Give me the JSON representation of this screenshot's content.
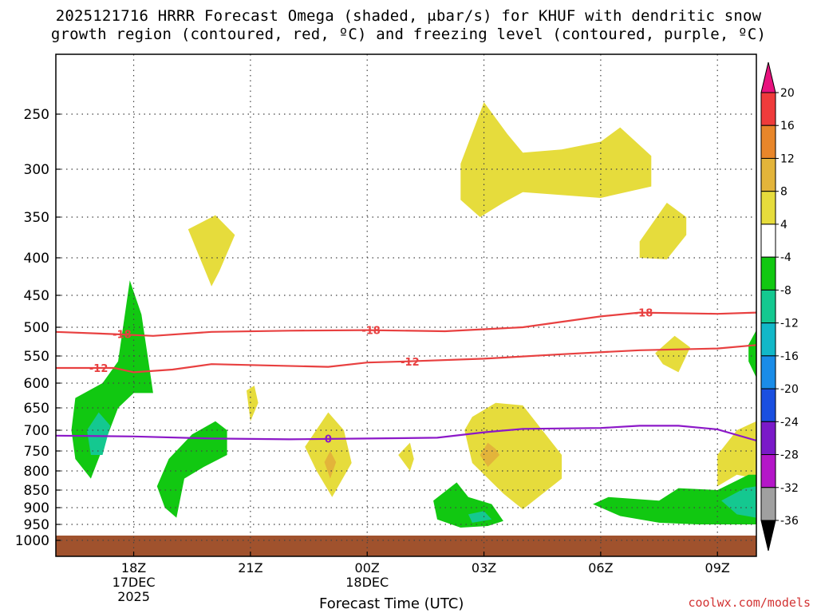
{
  "title": {
    "line1": "2025121716 HRRR Forecast Omega (shaded, μbar/s) for KHUF with dendritic snow",
    "line2": "growth region (contoured, red, ºC) and freezing level (contoured, purple, ºC)"
  },
  "xlabel": "Forecast Time (UTC)",
  "credit": "coolwx.com/models",
  "chart_data": {
    "type": "time-height cross section",
    "title": "2025121716 HRRR Forecast Omega (shaded, μbar/s) for KHUF with dendritic snow growth region (contoured, red, ºC) and freezing level (contoured, purple, ºC)",
    "xlabel": "Forecast Time (UTC)",
    "ylabel": "",
    "y_axis_scale": "pressure (log-like), hPa, increasing downward",
    "y_ticks": [
      250,
      300,
      350,
      400,
      450,
      500,
      550,
      600,
      650,
      700,
      750,
      800,
      850,
      900,
      950,
      1000
    ],
    "x_ticks": [
      {
        "hour": 18,
        "lines": [
          "18Z",
          "17DEC",
          "2025"
        ]
      },
      {
        "hour": 21,
        "lines": [
          "21Z"
        ]
      },
      {
        "hour": 24,
        "lines": [
          "00Z",
          "18DEC"
        ]
      },
      {
        "hour": 27,
        "lines": [
          "03Z"
        ]
      },
      {
        "hour": 30,
        "lines": [
          "06Z"
        ]
      },
      {
        "hour": 33,
        "lines": [
          "09Z"
        ]
      }
    ],
    "xlim_hours": [
      16,
      34
    ],
    "grid": true,
    "colorbar": {
      "labels": [
        "20",
        "16",
        "12",
        "8",
        "4",
        "-4",
        "-8",
        "-12",
        "-16",
        "-20",
        "-24",
        "-28",
        "-32",
        "-36"
      ],
      "colors": [
        "#e8127e",
        "#ef3b3b",
        "#e8862a",
        "#e3b43a",
        "#e6dc3c",
        "#ffffff",
        "#11c811",
        "#14c890",
        "#12b8c8",
        "#1a8ce8",
        "#1a4fe0",
        "#7a19c8",
        "#b416c8",
        "#a0a0a0",
        "#000000"
      ]
    },
    "contours": [
      {
        "name": "dendritic snow growth",
        "color": "#e84040",
        "labels": [
          "-18",
          "-12"
        ],
        "lines": [
          {
            "label": "-18",
            "points": [
              [
                16,
                508
              ],
              [
                17.5,
                512
              ],
              [
                18.5,
                515
              ],
              [
                20,
                508
              ],
              [
                22,
                506
              ],
              [
                24,
                505
              ],
              [
                26,
                507
              ],
              [
                28,
                500
              ],
              [
                30,
                483
              ],
              [
                31,
                477
              ],
              [
                33,
                479
              ],
              [
                34,
                477
              ]
            ]
          },
          {
            "label": "-12",
            "points": [
              [
                16,
                572
              ],
              [
                17.5,
                572
              ],
              [
                18,
                580
              ],
              [
                19,
                575
              ],
              [
                20,
                565
              ],
              [
                23,
                570
              ],
              [
                24,
                562
              ],
              [
                25,
                560
              ],
              [
                27,
                555
              ],
              [
                29,
                547
              ],
              [
                31,
                540
              ],
              [
                33,
                537
              ],
              [
                34,
                531
              ]
            ]
          }
        ]
      },
      {
        "name": "freezing level",
        "color": "#8c18c8",
        "labels": [
          "0"
        ],
        "lines": [
          {
            "label": "0",
            "points": [
              [
                16,
                713
              ],
              [
                18,
                715
              ],
              [
                20,
                720
              ],
              [
                22,
                722
              ],
              [
                24,
                720
              ],
              [
                25.8,
                718
              ],
              [
                27,
                705
              ],
              [
                28,
                697
              ],
              [
                30,
                695
              ],
              [
                31,
                690
              ],
              [
                32,
                690
              ],
              [
                33,
                698
              ],
              [
                34,
                725
              ]
            ]
          }
        ]
      }
    ],
    "shaded_regions": [
      {
        "value": "4 to 8",
        "color": "#e6dc3c",
        "polygon": [
          [
            19.4,
            365
          ],
          [
            20.1,
            348
          ],
          [
            20.6,
            372
          ],
          [
            20.2,
            418
          ],
          [
            20,
            438
          ]
        ]
      },
      {
        "value": "4 to 8",
        "color": "#e6dc3c",
        "polygon": [
          [
            26.4,
            295
          ],
          [
            27,
            240
          ],
          [
            27.6,
            268
          ],
          [
            28,
            285
          ],
          [
            29,
            282
          ],
          [
            30,
            275
          ],
          [
            30.5,
            262
          ],
          [
            31.3,
            288
          ],
          [
            31.3,
            318
          ],
          [
            30,
            330
          ],
          [
            28,
            324
          ],
          [
            27.5,
            335
          ],
          [
            26.9,
            350
          ],
          [
            26.4,
            332
          ]
        ]
      },
      {
        "value": "4 to 8",
        "color": "#e6dc3c",
        "polygon": [
          [
            31,
            380
          ],
          [
            31.7,
            335
          ],
          [
            32.2,
            350
          ],
          [
            32.2,
            372
          ],
          [
            31.7,
            402
          ],
          [
            31,
            400
          ]
        ]
      },
      {
        "value": "4 to 8",
        "color": "#e6dc3c",
        "polygon": [
          [
            31.4,
            545
          ],
          [
            31.9,
            515
          ],
          [
            32.3,
            535
          ],
          [
            32,
            580
          ],
          [
            31.6,
            565
          ]
        ]
      },
      {
        "value": "4 to 8",
        "color": "#e6dc3c",
        "polygon": [
          [
            20.9,
            615
          ],
          [
            21.1,
            605
          ],
          [
            21.2,
            640
          ],
          [
            21,
            680
          ]
        ]
      },
      {
        "value": "4 to 8",
        "color": "#e6dc3c",
        "polygon": [
          [
            22.4,
            740
          ],
          [
            23,
            660
          ],
          [
            23.4,
            700
          ],
          [
            23.6,
            780
          ],
          [
            23.1,
            870
          ],
          [
            22.7,
            800
          ]
        ]
      },
      {
        "value": "8 to 12",
        "color": "#e3b43a",
        "polygon": [
          [
            23.05,
            750
          ],
          [
            23.2,
            778
          ],
          [
            23.05,
            820
          ],
          [
            22.9,
            778
          ]
        ]
      },
      {
        "value": "4 to 8",
        "color": "#e6dc3c",
        "polygon": [
          [
            24.8,
            760
          ],
          [
            25.1,
            730
          ],
          [
            25.2,
            770
          ],
          [
            25.1,
            800
          ]
        ]
      },
      {
        "value": "4 to 8",
        "color": "#e6dc3c",
        "polygon": [
          [
            26.5,
            700
          ],
          [
            26.7,
            670
          ],
          [
            27.3,
            640
          ],
          [
            28,
            645
          ],
          [
            28.5,
            700
          ],
          [
            29,
            760
          ],
          [
            29,
            820
          ],
          [
            28,
            905
          ],
          [
            27.5,
            860
          ],
          [
            26.7,
            780
          ]
        ]
      },
      {
        "value": "8 to 12",
        "color": "#e3b43a",
        "polygon": [
          [
            27.1,
            730
          ],
          [
            27.3,
            745
          ],
          [
            27.4,
            760
          ],
          [
            27.1,
            790
          ],
          [
            26.9,
            760
          ]
        ]
      },
      {
        "value": "4 to 8",
        "color": "#e6dc3c",
        "polygon": [
          [
            33,
            760
          ],
          [
            33.5,
            700
          ],
          [
            34,
            680
          ],
          [
            34,
            820
          ],
          [
            33.5,
            810
          ],
          [
            33,
            840
          ]
        ]
      },
      {
        "value": "-4 to -8",
        "color": "#11c811",
        "polygon": [
          [
            16.5,
            630
          ],
          [
            17.2,
            600
          ],
          [
            17.6,
            560
          ],
          [
            17.9,
            430
          ],
          [
            18.2,
            480
          ],
          [
            18.4,
            570
          ],
          [
            18.5,
            620
          ],
          [
            18,
            620
          ],
          [
            17.6,
            650
          ],
          [
            17.3,
            720
          ],
          [
            16.9,
            820
          ],
          [
            16.5,
            770
          ],
          [
            16.4,
            700
          ]
        ]
      },
      {
        "value": "-8 to -12",
        "color": "#14c890",
        "polygon": [
          [
            16.8,
            700
          ],
          [
            17.1,
            660
          ],
          [
            17.4,
            690
          ],
          [
            17.2,
            760
          ],
          [
            16.9,
            760
          ]
        ]
      },
      {
        "value": "-4 to -8",
        "color": "#11c811",
        "polygon": [
          [
            18.6,
            840
          ],
          [
            18.9,
            770
          ],
          [
            19.5,
            710
          ],
          [
            20.1,
            680
          ],
          [
            20.4,
            700
          ],
          [
            20.4,
            760
          ],
          [
            19.8,
            790
          ],
          [
            19.3,
            820
          ],
          [
            19.1,
            930
          ],
          [
            18.8,
            900
          ]
        ]
      },
      {
        "value": "-4 to -8",
        "color": "#11c811",
        "polygon": [
          [
            25.7,
            880
          ],
          [
            26.3,
            830
          ],
          [
            26.6,
            870
          ],
          [
            27.2,
            890
          ],
          [
            27.5,
            940
          ],
          [
            27.1,
            955
          ],
          [
            26.4,
            960
          ],
          [
            25.8,
            935
          ]
        ]
      },
      {
        "value": "-8 to -12",
        "color": "#14c890",
        "polygon": [
          [
            26.6,
            920
          ],
          [
            27,
            910
          ],
          [
            27.2,
            935
          ],
          [
            26.7,
            945
          ]
        ]
      },
      {
        "value": "-4 to -8",
        "color": "#11c811",
        "polygon": [
          [
            29.8,
            890
          ],
          [
            30.2,
            870
          ],
          [
            31.5,
            880
          ],
          [
            32,
            845
          ],
          [
            33,
            850
          ],
          [
            33.8,
            810
          ],
          [
            34,
            810
          ],
          [
            34,
            950
          ],
          [
            32.5,
            950
          ],
          [
            31.5,
            945
          ],
          [
            30.5,
            925
          ]
        ]
      },
      {
        "value": "-8 to -12",
        "color": "#14c890",
        "polygon": [
          [
            33.1,
            880
          ],
          [
            33.7,
            845
          ],
          [
            34,
            840
          ],
          [
            34,
            930
          ],
          [
            33.5,
            920
          ]
        ]
      },
      {
        "value": "-4 to -8",
        "color": "#11c811",
        "polygon": [
          [
            33.8,
            530
          ],
          [
            34,
            505
          ],
          [
            34,
            590
          ],
          [
            33.8,
            560
          ]
        ]
      }
    ],
    "terrain": {
      "color": "#a0522d",
      "top_pressure_hpa": 985
    }
  }
}
